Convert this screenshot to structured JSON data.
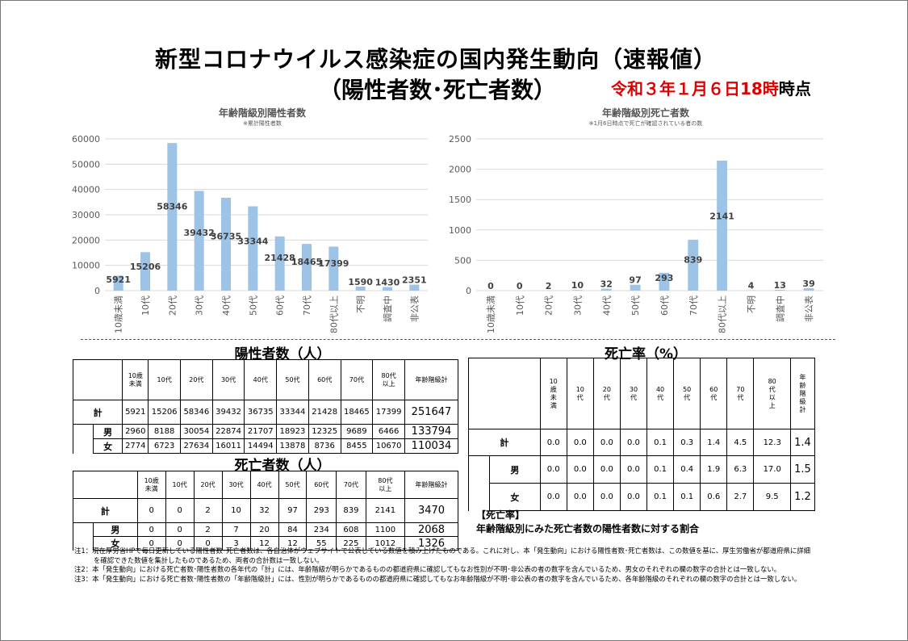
{
  "title_line1": "新型コロナウイルス感染症の国内発生動向（速報値）",
  "title_line2": "（陽性者数･死亡者数）",
  "date_prefix": "令和３年１月６日",
  "date_hour": "18時",
  "date_suffix": "時点",
  "chart_data": [
    {
      "type": "bar",
      "title": "年齢階級別陽性者数",
      "subtitle": "※累計陽性者数",
      "categories": [
        "10歳未満",
        "10代",
        "20代",
        "30代",
        "40代",
        "50代",
        "60代",
        "70代",
        "80代以上",
        "不明",
        "調査中",
        "非公表"
      ],
      "values": [
        5921,
        15206,
        58346,
        39432,
        36735,
        33344,
        21428,
        18465,
        17399,
        1590,
        1430,
        2351
      ],
      "yticks": [
        "0",
        "10000",
        "20000",
        "30000",
        "40000",
        "50000",
        "60000"
      ],
      "ylim": [
        0,
        60000
      ],
      "color": "#9dc3e6"
    },
    {
      "type": "bar",
      "title": "年齢階級別死亡者数",
      "subtitle": "※1月6日時点で死亡が確認されている者の数",
      "categories": [
        "10歳未満",
        "10代",
        "20代",
        "30代",
        "40代",
        "50代",
        "60代",
        "70代",
        "80代以上",
        "不明",
        "調査中",
        "非公表"
      ],
      "values": [
        0,
        0,
        2,
        10,
        32,
        97,
        293,
        839,
        2141,
        4,
        13,
        39
      ],
      "yticks": [
        "0",
        "500",
        "1000",
        "1500",
        "2000",
        "2500"
      ],
      "ylim": [
        0,
        2500
      ],
      "color": "#9dc3e6"
    }
  ],
  "positive_table": {
    "title": "陽性者数（人）",
    "headers": [
      "10歳\n未満",
      "10代",
      "20代",
      "30代",
      "40代",
      "50代",
      "60代",
      "70代",
      "80代\n以上",
      "年齢階級計"
    ],
    "rows": [
      {
        "label": "計",
        "values": [
          "5921",
          "15206",
          "58346",
          "39432",
          "36735",
          "33344",
          "21428",
          "18465",
          "17399",
          "251647"
        ]
      },
      {
        "label": "男",
        "values": [
          "2960",
          "8188",
          "30054",
          "22874",
          "21707",
          "18923",
          "12325",
          "9689",
          "6466",
          "133794"
        ]
      },
      {
        "label": "女",
        "values": [
          "2774",
          "6723",
          "27634",
          "16011",
          "14494",
          "13878",
          "8736",
          "8455",
          "10670",
          "110034"
        ]
      }
    ]
  },
  "death_table": {
    "title": "死亡者数（人）",
    "headers": [
      "10歳\n未満",
      "10代",
      "20代",
      "30代",
      "40代",
      "50代",
      "60代",
      "70代",
      "80代\n以上",
      "年齢階級計"
    ],
    "rows": [
      {
        "label": "計",
        "values": [
          "0",
          "0",
          "2",
          "10",
          "32",
          "97",
          "293",
          "839",
          "2141",
          "3470"
        ]
      },
      {
        "label": "男",
        "values": [
          "0",
          "0",
          "2",
          "7",
          "20",
          "84",
          "234",
          "608",
          "1100",
          "2068"
        ]
      },
      {
        "label": "女",
        "values": [
          "0",
          "0",
          "0",
          "3",
          "12",
          "12",
          "55",
          "225",
          "1012",
          "1326"
        ]
      }
    ]
  },
  "rate_table": {
    "title": "死亡率（%）",
    "headers": [
      "10\n歳\n未\n満",
      "10\n代",
      "20\n代",
      "30\n代",
      "40\n代",
      "50\n代",
      "60\n代",
      "70\n代",
      "80\n代\n以\n上",
      "年\n齢\n階\n級\n計"
    ],
    "rows": [
      {
        "label": "計",
        "values": [
          "0.0",
          "0.0",
          "0.0",
          "0.0",
          "0.1",
          "0.3",
          "1.4",
          "4.5",
          "12.3",
          "1.4"
        ]
      },
      {
        "label": "男",
        "values": [
          "0.0",
          "0.0",
          "0.0",
          "0.0",
          "0.1",
          "0.4",
          "1.9",
          "6.3",
          "17.0",
          "1.5"
        ]
      },
      {
        "label": "女",
        "values": [
          "0.0",
          "0.0",
          "0.0",
          "0.0",
          "0.1",
          "0.1",
          "0.6",
          "2.7",
          "9.5",
          "1.2"
        ]
      }
    ]
  },
  "rate_note": {
    "heading": "【死亡率】",
    "text": "年齢階級別にみた死亡者数の陽性者数に対する割合"
  },
  "footnotes": [
    "注1：現在厚労省HPで毎日更新している陽性者数･死亡者数は、各自治体がウェブサイトで公表している数値を積み上げたものである。これに対し、本「発生動向」における陽性者数･死亡者数は、この数値を基に、厚生労働省が都道府県に詳細を確認できた数値を集計したものであるため、両者の合計数は一致しない。",
    "注2：本「発生動向」における死亡者数･陽性者数の各年代の「計」には、年齢階級が明らかであるものの都道府県に確認してもなお性別が不明･非公表の者の数字を含んでいるため、男女のそれぞれの欄の数字の合計とは一致しない。",
    "注3：本「発生動向」における死亡者数･陽性者数の「年齢階級計」には、性別が明らかであるものの都道府県に確認してもなお年齢階級が不明･非公表の者の数字を含んでいるため、各年齢階級のそれぞれの欄の数字の合計とは一致しない。"
  ]
}
